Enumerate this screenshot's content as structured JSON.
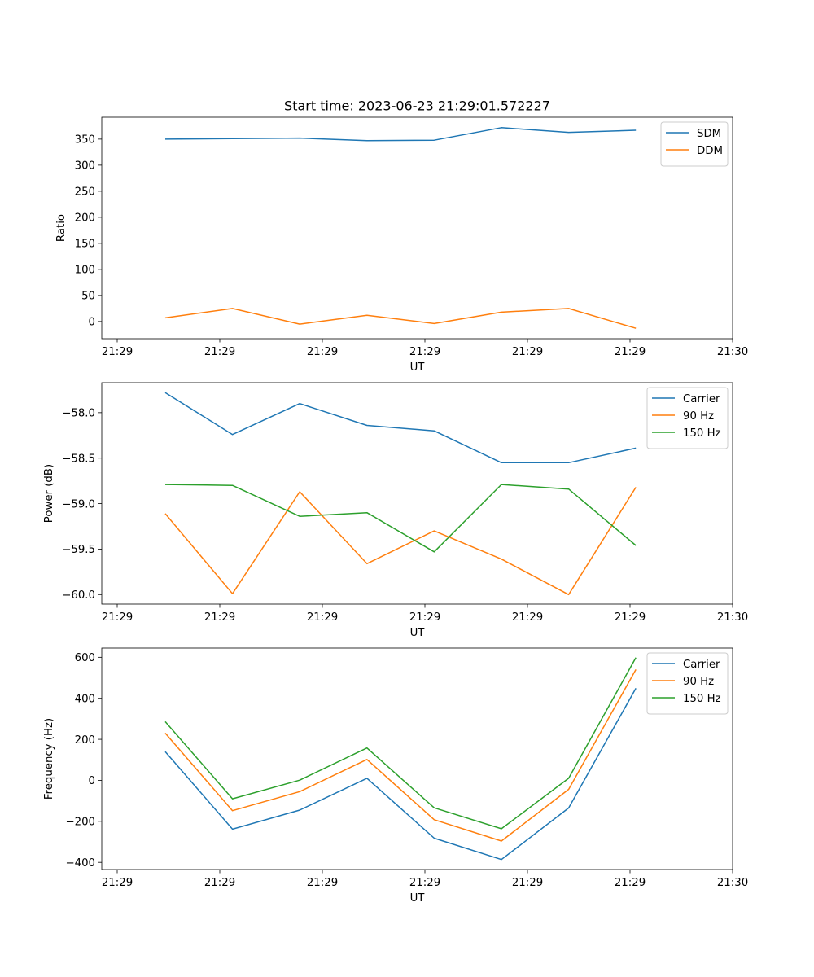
{
  "title": "Start time: 2023-06-23 21:29:01.572227",
  "chart_data": [
    {
      "type": "line",
      "id": "ratio",
      "xlabel": "UT",
      "ylabel": "Ratio",
      "x": [
        "21:29:01.572",
        "21:29:02.063",
        "21:29:02.554",
        "21:29:03.045",
        "21:29:03.536",
        "21:29:04.027",
        "21:29:04.518",
        "21:29:05.009"
      ],
      "x_ticks": [
        "21:29",
        "21:29",
        "21:29",
        "21:29",
        "21:29",
        "21:29",
        "21:30"
      ],
      "ylim": [
        -33,
        392
      ],
      "yticks": [
        0,
        50,
        100,
        150,
        200,
        250,
        300,
        350
      ],
      "legend": "top-right",
      "series": [
        {
          "name": "SDM",
          "color": "#1f77b4",
          "values": [
            350,
            351,
            352,
            347,
            348,
            372,
            363,
            367
          ]
        },
        {
          "name": "DDM",
          "color": "#ff7f0e",
          "values": [
            7,
            25,
            -5,
            12,
            -4,
            18,
            25,
            -13
          ]
        }
      ]
    },
    {
      "type": "line",
      "id": "power",
      "xlabel": "UT",
      "ylabel": "Power (dB)",
      "x": [
        "21:29:01.572",
        "21:29:02.063",
        "21:29:02.554",
        "21:29:03.045",
        "21:29:03.536",
        "21:29:04.027",
        "21:29:04.518",
        "21:29:05.009"
      ],
      "x_ticks": [
        "21:29",
        "21:29",
        "21:29",
        "21:29",
        "21:29",
        "21:29",
        "21:30"
      ],
      "ylim": [
        -60.105,
        -57.67
      ],
      "yticks": [
        -60.0,
        -59.5,
        -59.0,
        -58.5,
        -58.0
      ],
      "legend": "top-right",
      "series": [
        {
          "name": "Carrier",
          "color": "#1f77b4",
          "values": [
            -57.78,
            -58.24,
            -57.9,
            -58.14,
            -58.2,
            -58.55,
            -58.55,
            -58.39
          ]
        },
        {
          "name": "90 Hz",
          "color": "#ff7f0e",
          "values": [
            -59.11,
            -59.99,
            -58.87,
            -59.66,
            -59.3,
            -59.61,
            -60.0,
            -58.82
          ]
        },
        {
          "name": "150 Hz",
          "color": "#2ca02c",
          "values": [
            -58.79,
            -58.8,
            -59.14,
            -59.1,
            -59.53,
            -58.79,
            -58.84,
            -59.46
          ]
        }
      ]
    },
    {
      "type": "line",
      "id": "frequency",
      "xlabel": "UT",
      "ylabel": "Frequency (Hz)",
      "x": [
        "21:29:01.572",
        "21:29:02.063",
        "21:29:02.554",
        "21:29:03.045",
        "21:29:03.536",
        "21:29:04.027",
        "21:29:04.518",
        "21:29:05.009"
      ],
      "x_ticks": [
        "21:29",
        "21:29",
        "21:29",
        "21:29",
        "21:29",
        "21:29",
        "21:30"
      ],
      "ylim": [
        -435,
        645
      ],
      "yticks": [
        -400,
        -200,
        0,
        200,
        400,
        600
      ],
      "legend": "top-right",
      "series": [
        {
          "name": "Carrier",
          "color": "#1f77b4",
          "values": [
            140,
            -238,
            -145,
            10,
            -282,
            -386,
            -135,
            449
          ]
        },
        {
          "name": "90 Hz",
          "color": "#ff7f0e",
          "values": [
            230,
            -148,
            -55,
            102,
            -192,
            -296,
            -44,
            540
          ]
        },
        {
          "name": "150 Hz",
          "color": "#2ca02c",
          "values": [
            286,
            -90,
            1,
            158,
            -134,
            -236,
            10,
            598
          ]
        }
      ]
    }
  ]
}
